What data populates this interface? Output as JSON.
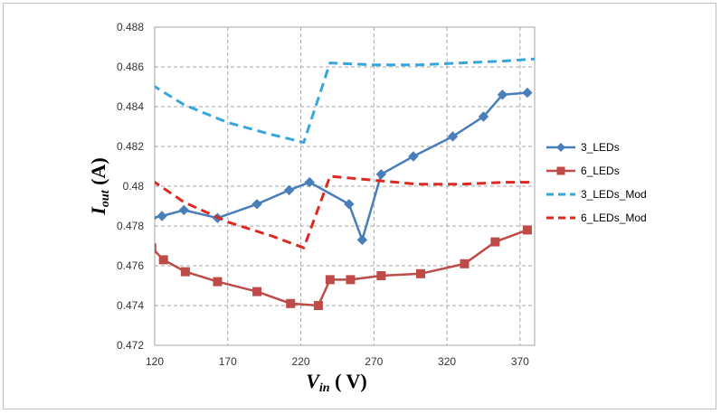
{
  "chart_data": {
    "type": "line",
    "xlabel_main": "V",
    "xlabel_sub": "in",
    "xlabel_unit": " ( V)",
    "ylabel_main": "I",
    "ylabel_sub": "out",
    "ylabel_unit": " (A)",
    "xlim": [
      120,
      380
    ],
    "ylim": [
      0.472,
      0.488
    ],
    "xticks": [
      120,
      170,
      220,
      270,
      320,
      370
    ],
    "yticks": [
      0.472,
      0.474,
      0.476,
      0.478,
      0.48,
      0.482,
      0.484,
      0.486,
      0.488
    ],
    "ytick_labels": [
      "0.472",
      "0.474",
      "0.476",
      "0.478",
      "0.48",
      "0.482",
      "0.484",
      "0.486",
      "0.488"
    ],
    "grid": true,
    "legend_position": "right",
    "series": [
      {
        "name": "3_LEDs",
        "color": "#4a7ebb",
        "marker": "diamond",
        "dash": "solid",
        "x": [
          118,
          125,
          140,
          163,
          190,
          212,
          226,
          253,
          262,
          275,
          297,
          324,
          345,
          358,
          375
        ],
        "y": [
          0.4784,
          0.4785,
          0.4788,
          0.4784,
          0.4791,
          0.4798,
          0.4802,
          0.4791,
          0.4773,
          0.4806,
          0.4815,
          0.4825,
          0.4835,
          0.4846,
          0.4847
        ]
      },
      {
        "name": "6_LEDs",
        "color": "#be4b48",
        "marker": "square",
        "dash": "solid",
        "x": [
          118,
          126,
          141,
          163,
          190,
          213,
          232,
          240,
          254,
          275,
          302,
          332,
          353,
          375
        ],
        "y": [
          0.4769,
          0.4763,
          0.4757,
          0.4752,
          0.4747,
          0.4741,
          0.474,
          0.4753,
          0.4753,
          0.4755,
          0.4756,
          0.4761,
          0.4772,
          0.4778
        ]
      },
      {
        "name": "3_LEDs_Mod",
        "color": "#36a6dd",
        "marker": "none",
        "dash": "dashed",
        "x": [
          118,
          140,
          170,
          200,
          222,
          240,
          270,
          300,
          330,
          360,
          380
        ],
        "y": [
          0.4851,
          0.4841,
          0.4832,
          0.4826,
          0.4822,
          0.4862,
          0.4861,
          0.4861,
          0.4862,
          0.4863,
          0.4864
        ]
      },
      {
        "name": "6_LEDs_Mod",
        "color": "#dc2a22",
        "marker": "none",
        "dash": "dashed",
        "x": [
          118,
          140,
          170,
          200,
          222,
          240,
          270,
          300,
          330,
          360,
          380
        ],
        "y": [
          0.4803,
          0.4792,
          0.4782,
          0.4775,
          0.4769,
          0.4805,
          0.4803,
          0.4801,
          0.4801,
          0.4802,
          0.4802
        ]
      }
    ]
  }
}
